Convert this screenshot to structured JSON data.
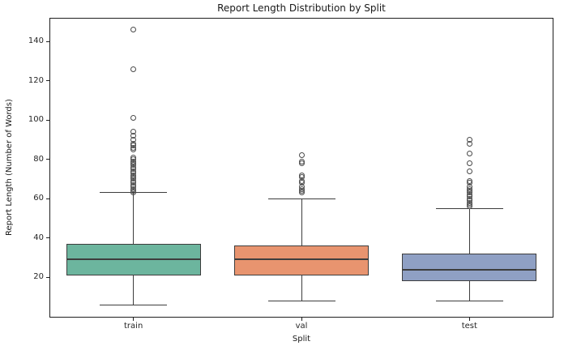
{
  "chart_data": {
    "type": "boxplot",
    "title": "Report Length Distribution by Split",
    "xlabel": "Split",
    "ylabel": "Report Length (Number of Words)",
    "categories": [
      "train",
      "val",
      "test"
    ],
    "ylim": [
      -0.5,
      152
    ],
    "yticks": [
      20,
      40,
      60,
      80,
      100,
      120,
      140
    ],
    "grid": false,
    "legend": "none",
    "line_color": "#3d3d3d",
    "series": [
      {
        "name": "train",
        "color": "#6cb59e",
        "whisker_low": 6,
        "q1": 21,
        "median": 29,
        "q3": 37,
        "whisker_high": 63,
        "outliers": [
          63,
          64,
          65,
          66,
          67,
          68,
          69,
          70,
          71,
          72,
          73,
          74,
          75,
          76,
          77,
          78,
          79,
          80,
          81,
          85,
          86,
          87,
          88,
          90,
          92,
          94,
          101,
          126,
          146
        ]
      },
      {
        "name": "val",
        "color": "#e8946f",
        "whisker_low": 8,
        "q1": 21,
        "median": 29,
        "q3": 36,
        "whisker_high": 60,
        "outliers": [
          63,
          64,
          65,
          66,
          68,
          69,
          71,
          72,
          78,
          79,
          82
        ]
      },
      {
        "name": "test",
        "color": "#8fa0c4",
        "whisker_low": 8,
        "q1": 18,
        "median": 24,
        "q3": 32,
        "whisker_high": 55,
        "outliers": [
          56,
          57,
          58,
          59,
          60,
          61,
          62,
          63,
          64,
          65,
          66,
          68,
          69,
          74,
          78,
          83,
          88,
          90
        ]
      }
    ]
  }
}
